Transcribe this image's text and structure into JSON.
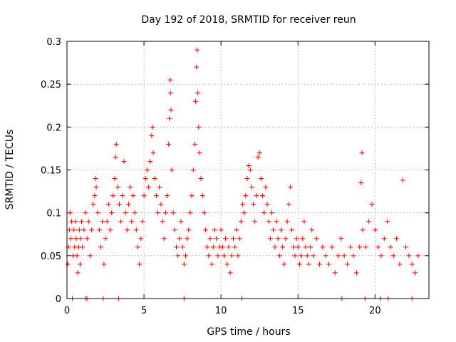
{
  "chart_data": {
    "type": "scatter",
    "title": "Day 192 of 2018, SRMTID for receiver reun",
    "xlabel": "GPS time / hours",
    "ylabel": "SRMTID / TECUs",
    "xlim": [
      0,
      23.5
    ],
    "ylim": [
      0,
      0.3
    ],
    "xticks": [
      0,
      5,
      10,
      15,
      20
    ],
    "xtick_labels": [
      "0",
      "5",
      "10",
      "15",
      "20"
    ],
    "yticks": [
      0,
      0.05,
      0.1,
      0.15,
      0.2,
      0.25,
      0.3
    ],
    "ytick_labels": [
      "0",
      "0.05",
      "0.1",
      "0.15",
      "0.2",
      "0.25",
      "0.3"
    ],
    "grid": true,
    "marker": "+",
    "color": "#ff0000",
    "series": [
      {
        "name": "SRMTID",
        "points": [
          [
            0.05,
            0.04
          ],
          [
            0.1,
            0.06
          ],
          [
            0.15,
            0.08
          ],
          [
            0.2,
            0.1
          ],
          [
            0.25,
            0.07
          ],
          [
            0.3,
            0.09
          ],
          [
            0.4,
            0.05
          ],
          [
            0.45,
            0.08
          ],
          [
            0.5,
            0.06
          ],
          [
            0.55,
            0.09
          ],
          [
            0.6,
            0.07
          ],
          [
            0.65,
            0.05
          ],
          [
            0.7,
            0.03
          ],
          [
            0.75,
            0.06
          ],
          [
            0.8,
            0.08
          ],
          [
            0.85,
            0.04
          ],
          [
            0.9,
            0.07
          ],
          [
            0.95,
            0.09
          ],
          [
            1.0,
            0.06
          ],
          [
            1.1,
            0.08
          ],
          [
            1.2,
            0.1
          ],
          [
            1.3,
            0.07
          ],
          [
            1.4,
            0.09
          ],
          [
            1.5,
            0.05
          ],
          [
            1.6,
            0.08
          ],
          [
            1.7,
            0.11
          ],
          [
            1.8,
            0.12
          ],
          [
            1.85,
            0.14
          ],
          [
            1.9,
            0.13
          ],
          [
            2.0,
            0.1
          ],
          [
            2.1,
            0.08
          ],
          [
            2.2,
            0.06
          ],
          [
            2.3,
            0.09
          ],
          [
            2.4,
            0.04
          ],
          [
            2.5,
            0.07
          ],
          [
            2.6,
            0.09
          ],
          [
            2.7,
            0.11
          ],
          [
            2.8,
            0.08
          ],
          [
            2.9,
            0.1
          ],
          [
            3.0,
            0.12
          ],
          [
            3.1,
            0.14
          ],
          [
            3.15,
            0.165
          ],
          [
            3.2,
            0.18
          ],
          [
            3.3,
            0.13
          ],
          [
            3.4,
            0.11
          ],
          [
            3.5,
            0.09
          ],
          [
            3.6,
            0.12
          ],
          [
            3.7,
            0.16
          ],
          [
            3.8,
            0.1
          ],
          [
            3.9,
            0.08
          ],
          [
            4.0,
            0.11
          ],
          [
            4.1,
            0.13
          ],
          [
            4.2,
            0.09
          ],
          [
            4.3,
            0.12
          ],
          [
            4.4,
            0.1
          ],
          [
            4.5,
            0.08
          ],
          [
            4.6,
            0.06
          ],
          [
            4.7,
            0.04
          ],
          [
            4.8,
            0.07
          ],
          [
            4.9,
            0.09
          ],
          [
            5.0,
            0.12
          ],
          [
            5.1,
            0.14
          ],
          [
            5.2,
            0.15
          ],
          [
            5.3,
            0.13
          ],
          [
            5.4,
            0.16
          ],
          [
            5.5,
            0.19
          ],
          [
            5.55,
            0.2
          ],
          [
            5.6,
            0.17
          ],
          [
            5.7,
            0.14
          ],
          [
            5.8,
            0.12
          ],
          [
            5.9,
            0.1
          ],
          [
            6.0,
            0.13
          ],
          [
            6.1,
            0.11
          ],
          [
            6.2,
            0.09
          ],
          [
            6.3,
            0.07
          ],
          [
            6.4,
            0.1
          ],
          [
            6.5,
            0.12
          ],
          [
            6.6,
            0.18
          ],
          [
            6.65,
            0.21
          ],
          [
            6.7,
            0.255
          ],
          [
            6.72,
            0.24
          ],
          [
            6.75,
            0.22
          ],
          [
            6.8,
            0.15
          ],
          [
            6.9,
            0.1
          ],
          [
            7.0,
            0.08
          ],
          [
            7.1,
            0.06
          ],
          [
            7.2,
            0.05
          ],
          [
            7.3,
            0.07
          ],
          [
            7.4,
            0.09
          ],
          [
            7.5,
            0.06
          ],
          [
            7.6,
            0.04
          ],
          [
            7.7,
            0.05
          ],
          [
            7.8,
            0.07
          ],
          [
            7.9,
            0.08
          ],
          [
            8.0,
            0.1
          ],
          [
            8.1,
            0.12
          ],
          [
            8.2,
            0.15
          ],
          [
            8.3,
            0.18
          ],
          [
            8.35,
            0.23
          ],
          [
            8.4,
            0.27
          ],
          [
            8.45,
            0.29
          ],
          [
            8.5,
            0.24
          ],
          [
            8.55,
            0.2
          ],
          [
            8.6,
            0.17
          ],
          [
            8.7,
            0.14
          ],
          [
            8.8,
            0.12
          ],
          [
            8.9,
            0.1
          ],
          [
            9.0,
            0.08
          ],
          [
            9.1,
            0.06
          ],
          [
            9.2,
            0.05
          ],
          [
            9.3,
            0.07
          ],
          [
            9.4,
            0.04
          ],
          [
            9.5,
            0.06
          ],
          [
            9.6,
            0.08
          ],
          [
            9.7,
            0.07
          ],
          [
            9.8,
            0.05
          ],
          [
            9.9,
            0.06
          ],
          [
            10.0,
            0.08
          ],
          [
            10.1,
            0.06
          ],
          [
            10.2,
            0.05
          ],
          [
            10.3,
            0.07
          ],
          [
            10.4,
            0.04
          ],
          [
            10.5,
            0.06
          ],
          [
            10.6,
            0.03
          ],
          [
            10.7,
            0.05
          ],
          [
            10.8,
            0.07
          ],
          [
            10.9,
            0.06
          ],
          [
            11.0,
            0.08
          ],
          [
            11.1,
            0.05
          ],
          [
            11.2,
            0.07
          ],
          [
            11.3,
            0.09
          ],
          [
            11.4,
            0.11
          ],
          [
            11.5,
            0.1
          ],
          [
            11.6,
            0.12
          ],
          [
            11.7,
            0.14
          ],
          [
            11.8,
            0.155
          ],
          [
            11.9,
            0.15
          ],
          [
            12.0,
            0.13
          ],
          [
            12.1,
            0.11
          ],
          [
            12.2,
            0.09
          ],
          [
            12.3,
            0.12
          ],
          [
            12.4,
            0.165
          ],
          [
            12.5,
            0.17
          ],
          [
            12.6,
            0.14
          ],
          [
            12.7,
            0.12
          ],
          [
            12.8,
            0.1
          ],
          [
            12.9,
            0.13
          ],
          [
            13.0,
            0.11
          ],
          [
            13.1,
            0.09
          ],
          [
            13.2,
            0.07
          ],
          [
            13.3,
            0.1
          ],
          [
            13.4,
            0.08
          ],
          [
            13.5,
            0.06
          ],
          [
            13.6,
            0.09
          ],
          [
            13.7,
            0.07
          ],
          [
            13.8,
            0.05
          ],
          [
            13.9,
            0.08
          ],
          [
            14.0,
            0.06
          ],
          [
            14.1,
            0.04
          ],
          [
            14.2,
            0.07
          ],
          [
            14.3,
            0.09
          ],
          [
            14.4,
            0.11
          ],
          [
            14.5,
            0.13
          ],
          [
            14.6,
            0.08
          ],
          [
            14.7,
            0.06
          ],
          [
            14.8,
            0.05
          ],
          [
            14.9,
            0.07
          ],
          [
            15.0,
            0.06
          ],
          [
            15.1,
            0.04
          ],
          [
            15.2,
            0.05
          ],
          [
            15.3,
            0.07
          ],
          [
            15.4,
            0.09
          ],
          [
            15.5,
            0.06
          ],
          [
            15.6,
            0.05
          ],
          [
            15.7,
            0.04
          ],
          [
            15.8,
            0.06
          ],
          [
            15.9,
            0.08
          ],
          [
            16.0,
            0.05
          ],
          [
            16.2,
            0.07
          ],
          [
            16.4,
            0.04
          ],
          [
            16.6,
            0.06
          ],
          [
            16.8,
            0.05
          ],
          [
            17.0,
            0.04
          ],
          [
            17.2,
            0.06
          ],
          [
            17.4,
            0.03
          ],
          [
            17.6,
            0.05
          ],
          [
            17.8,
            0.07
          ],
          [
            18.0,
            0.05
          ],
          [
            18.2,
            0.04
          ],
          [
            18.4,
            0.06
          ],
          [
            18.6,
            0.05
          ],
          [
            18.8,
            0.03
          ],
          [
            19.0,
            0.06
          ],
          [
            19.1,
            0.135
          ],
          [
            19.15,
            0.17
          ],
          [
            19.2,
            0.08
          ],
          [
            19.4,
            0.06
          ],
          [
            19.6,
            0.09
          ],
          [
            19.8,
            0.11
          ],
          [
            20.0,
            0.08
          ],
          [
            20.2,
            0.06
          ],
          [
            20.4,
            0.05
          ],
          [
            20.6,
            0.07
          ],
          [
            20.8,
            0.09
          ],
          [
            21.0,
            0.06
          ],
          [
            21.2,
            0.05
          ],
          [
            21.4,
            0.07
          ],
          [
            21.6,
            0.04
          ],
          [
            21.8,
            0.138
          ],
          [
            22.0,
            0.06
          ],
          [
            22.2,
            0.05
          ],
          [
            22.4,
            0.04
          ],
          [
            22.6,
            0.03
          ],
          [
            22.8,
            0.05
          ]
        ]
      }
    ],
    "zero_points_x": [
      0.35,
      1.2,
      1.3,
      2.35,
      3.35,
      7.6,
      11.35,
      17.85,
      19.35,
      20.35,
      20.85,
      22.4
    ]
  }
}
